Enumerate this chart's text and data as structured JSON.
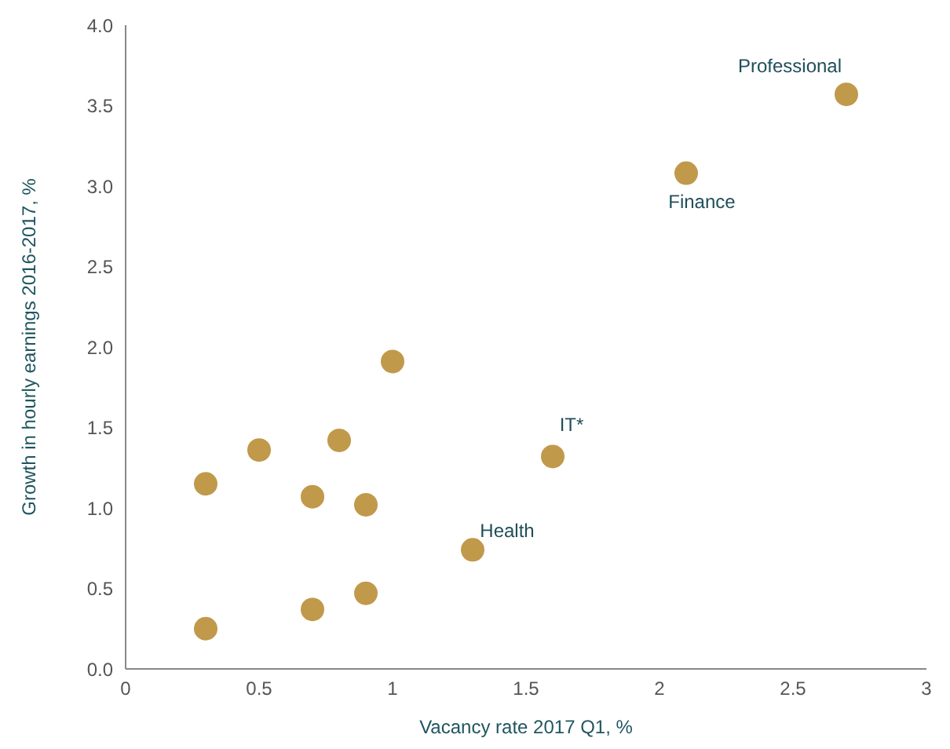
{
  "chart_data": {
    "type": "scatter",
    "xlabel": "Vacancy rate 2017 Q1, %",
    "ylabel": "Growth in hourly earnings 2016-2017, %",
    "x": [
      0.3,
      0.5,
      0.3,
      0.7,
      0.7,
      0.8,
      0.9,
      0.9,
      1.0,
      1.3,
      1.6,
      2.1,
      2.7
    ],
    "values": [
      1.15,
      1.36,
      0.25,
      1.07,
      0.37,
      1.42,
      1.02,
      0.47,
      1.91,
      0.74,
      1.32,
      3.08,
      3.57
    ],
    "color": "#c0994a",
    "marker": "circle",
    "grid": false,
    "legend": false,
    "xlim": [
      0,
      3
    ],
    "xticks": [
      0,
      0.5,
      1,
      1.5,
      2,
      2.5,
      3
    ],
    "ylim": [
      0,
      4
    ],
    "yticks": [
      {
        "value": 0,
        "label": "0.0"
      },
      {
        "value": 0.5,
        "label": "0.5"
      },
      {
        "value": 1,
        "label": "1.0"
      },
      {
        "value": 1.5,
        "label": "1.5"
      },
      {
        "value": 2,
        "label": "2.0"
      },
      {
        "value": 2.5,
        "label": "2.5"
      },
      {
        "value": 3,
        "label": "3.0"
      },
      {
        "value": 3.5,
        "label": "3.5"
      },
      {
        "value": 4,
        "label": "4.0"
      }
    ],
    "annotations": [
      {
        "text": "Professional",
        "x": 2.7,
        "y": 3.57
      },
      {
        "text": "Finance",
        "x": 2.1,
        "y": 3.08
      },
      {
        "text": "IT*",
        "x": 1.6,
        "y": 1.32
      },
      {
        "text": "Health",
        "x": 1.3,
        "y": 0.74
      }
    ]
  }
}
